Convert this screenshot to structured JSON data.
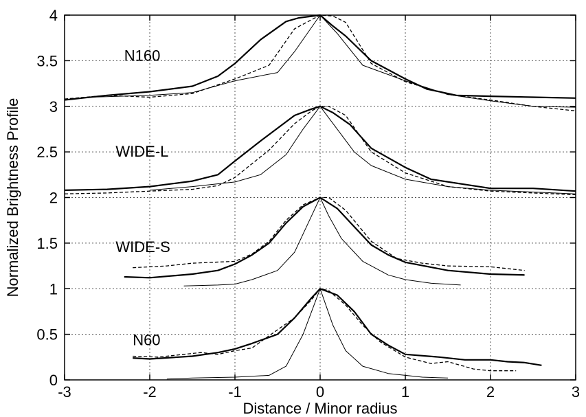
{
  "chart_data": {
    "type": "line",
    "title": "",
    "xlabel": "Distance / Minor radius",
    "ylabel": "Normalized Brightness Profile",
    "xlim": [
      -3,
      3
    ],
    "ylim": [
      0,
      4
    ],
    "x_ticks": [
      "-3",
      "-2",
      "-1",
      "0",
      "1",
      "2",
      "3"
    ],
    "y_ticks": [
      "0",
      "0.5",
      "1",
      "1.5",
      "2",
      "2.5",
      "3",
      "3.5",
      "4"
    ],
    "grid": true,
    "legend": "none",
    "group_labels": [
      {
        "text": "N160",
        "x": -2.3,
        "y": 3.5
      },
      {
        "text": "WIDE-L",
        "x": -2.4,
        "y": 2.45
      },
      {
        "text": "WIDE-S",
        "x": -2.4,
        "y": 1.4
      },
      {
        "text": "N60",
        "x": -2.2,
        "y": 0.38
      }
    ],
    "series": [
      {
        "group": "N160",
        "style": "thick",
        "points": [
          [
            -3,
            3.07
          ],
          [
            -2.5,
            3.12
          ],
          [
            -2,
            3.16
          ],
          [
            -1.5,
            3.22
          ],
          [
            -1.2,
            3.33
          ],
          [
            -1,
            3.47
          ],
          [
            -0.7,
            3.73
          ],
          [
            -0.4,
            3.93
          ],
          [
            -0.25,
            3.97
          ],
          [
            0,
            4.0
          ],
          [
            0.15,
            3.88
          ],
          [
            0.3,
            3.77
          ],
          [
            0.6,
            3.5
          ],
          [
            1,
            3.3
          ],
          [
            1.25,
            3.19
          ],
          [
            1.6,
            3.12
          ],
          [
            2,
            3.11
          ],
          [
            2.5,
            3.1
          ],
          [
            3,
            3.09
          ]
        ]
      },
      {
        "group": "N160",
        "style": "dashed",
        "points": [
          [
            -3,
            3.08
          ],
          [
            -2.5,
            3.12
          ],
          [
            -2,
            3.1
          ],
          [
            -1.5,
            3.14
          ],
          [
            -1,
            3.3
          ],
          [
            -0.6,
            3.45
          ],
          [
            -0.3,
            3.85
          ],
          [
            -0.1,
            3.95
          ],
          [
            0,
            4.0
          ],
          [
            0.15,
            3.99
          ],
          [
            0.3,
            3.92
          ],
          [
            0.6,
            3.47
          ],
          [
            1,
            3.27
          ],
          [
            1.5,
            3.13
          ],
          [
            2,
            3.07
          ],
          [
            2.5,
            3.0
          ],
          [
            3,
            2.95
          ]
        ]
      },
      {
        "group": "N160",
        "style": "thin",
        "points": [
          [
            -2.7,
            3.1
          ],
          [
            -2,
            3.12
          ],
          [
            -1.5,
            3.15
          ],
          [
            -1,
            3.28
          ],
          [
            -0.5,
            3.37
          ],
          [
            -0.3,
            3.6
          ],
          [
            0,
            4.0
          ],
          [
            0.2,
            3.8
          ],
          [
            0.5,
            3.45
          ],
          [
            1,
            3.28
          ],
          [
            1.5,
            3.13
          ],
          [
            2,
            3.06
          ],
          [
            2.5,
            3.0
          ],
          [
            3,
            2.99
          ]
        ]
      },
      {
        "group": "WIDE-L",
        "style": "thick",
        "points": [
          [
            -3,
            2.08
          ],
          [
            -2.5,
            2.09
          ],
          [
            -2,
            2.12
          ],
          [
            -1.5,
            2.18
          ],
          [
            -1.2,
            2.25
          ],
          [
            -1,
            2.4
          ],
          [
            -0.7,
            2.62
          ],
          [
            -0.3,
            2.9
          ],
          [
            -0.1,
            2.97
          ],
          [
            0,
            3.0
          ],
          [
            0.15,
            2.93
          ],
          [
            0.35,
            2.8
          ],
          [
            0.6,
            2.54
          ],
          [
            1,
            2.33
          ],
          [
            1.3,
            2.2
          ],
          [
            2,
            2.1
          ],
          [
            2.5,
            2.1
          ],
          [
            3,
            2.07
          ]
        ]
      },
      {
        "group": "WIDE-L",
        "style": "dashed",
        "points": [
          [
            -3,
            2.04
          ],
          [
            -2.5,
            2.05
          ],
          [
            -2,
            2.07
          ],
          [
            -1.5,
            2.09
          ],
          [
            -1.2,
            2.13
          ],
          [
            -1,
            2.22
          ],
          [
            -0.6,
            2.52
          ],
          [
            -0.3,
            2.81
          ],
          [
            -0.1,
            2.95
          ],
          [
            0,
            3.0
          ],
          [
            0.1,
            3.0
          ],
          [
            0.3,
            2.9
          ],
          [
            0.6,
            2.5
          ],
          [
            1,
            2.27
          ],
          [
            1.5,
            2.12
          ],
          [
            2,
            2.07
          ],
          [
            2.5,
            2.05
          ],
          [
            3,
            2.03
          ]
        ]
      },
      {
        "group": "WIDE-L",
        "style": "thin",
        "points": [
          [
            -2,
            2.08
          ],
          [
            -1.5,
            2.12
          ],
          [
            -1,
            2.17
          ],
          [
            -0.7,
            2.25
          ],
          [
            -0.4,
            2.47
          ],
          [
            -0.2,
            2.75
          ],
          [
            0,
            3.0
          ],
          [
            0.2,
            2.75
          ],
          [
            0.4,
            2.5
          ],
          [
            0.6,
            2.35
          ],
          [
            1,
            2.2
          ],
          [
            1.5,
            2.12
          ],
          [
            2,
            2.08
          ],
          [
            2.5,
            2.06
          ],
          [
            3,
            2.04
          ]
        ]
      },
      {
        "group": "WIDE-S",
        "style": "thick",
        "points": [
          [
            -2.3,
            1.13
          ],
          [
            -2,
            1.12
          ],
          [
            -1.5,
            1.16
          ],
          [
            -1.2,
            1.2
          ],
          [
            -1,
            1.27
          ],
          [
            -0.8,
            1.37
          ],
          [
            -0.6,
            1.5
          ],
          [
            -0.4,
            1.72
          ],
          [
            -0.2,
            1.9
          ],
          [
            0,
            2.0
          ],
          [
            0.2,
            1.88
          ],
          [
            0.4,
            1.68
          ],
          [
            0.6,
            1.48
          ],
          [
            0.8,
            1.37
          ],
          [
            1,
            1.29
          ],
          [
            1.5,
            1.2
          ],
          [
            2,
            1.16
          ],
          [
            2.4,
            1.15
          ]
        ]
      },
      {
        "group": "WIDE-S",
        "style": "dashed",
        "points": [
          [
            -2.2,
            1.23
          ],
          [
            -1.8,
            1.25
          ],
          [
            -1.5,
            1.28
          ],
          [
            -1,
            1.3
          ],
          [
            -0.8,
            1.38
          ],
          [
            -0.6,
            1.52
          ],
          [
            -0.4,
            1.75
          ],
          [
            -0.2,
            1.92
          ],
          [
            0,
            2.0
          ],
          [
            0.1,
            2.0
          ],
          [
            0.3,
            1.86
          ],
          [
            0.6,
            1.52
          ],
          [
            0.9,
            1.33
          ],
          [
            1.2,
            1.28
          ],
          [
            1.5,
            1.25
          ],
          [
            2,
            1.24
          ],
          [
            2.2,
            1.22
          ],
          [
            2.4,
            1.2
          ]
        ]
      },
      {
        "group": "WIDE-S",
        "style": "thin",
        "points": [
          [
            -1.6,
            1.03
          ],
          [
            -1.2,
            1.04
          ],
          [
            -1,
            1.05
          ],
          [
            -0.8,
            1.1
          ],
          [
            -0.5,
            1.2
          ],
          [
            -0.3,
            1.4
          ],
          [
            -0.15,
            1.7
          ],
          [
            0,
            2.0
          ],
          [
            0.1,
            1.8
          ],
          [
            0.25,
            1.55
          ],
          [
            0.5,
            1.3
          ],
          [
            0.8,
            1.15
          ],
          [
            1,
            1.1
          ],
          [
            1.3,
            1.06
          ],
          [
            1.65,
            1.04
          ]
        ]
      },
      {
        "group": "N60",
        "style": "thick",
        "points": [
          [
            -2.2,
            0.24
          ],
          [
            -2,
            0.23
          ],
          [
            -1.5,
            0.26
          ],
          [
            -1.2,
            0.3
          ],
          [
            -1,
            0.34
          ],
          [
            -0.8,
            0.4
          ],
          [
            -0.5,
            0.5
          ],
          [
            -0.3,
            0.68
          ],
          [
            -0.1,
            0.9
          ],
          [
            0,
            1.0
          ],
          [
            0.2,
            0.93
          ],
          [
            0.4,
            0.75
          ],
          [
            0.6,
            0.5
          ],
          [
            0.8,
            0.38
          ],
          [
            1,
            0.28
          ],
          [
            1.4,
            0.25
          ],
          [
            1.7,
            0.22
          ],
          [
            2,
            0.22
          ],
          [
            2.2,
            0.2
          ],
          [
            2.4,
            0.19
          ],
          [
            2.6,
            0.16
          ]
        ]
      },
      {
        "group": "N60",
        "style": "dashed",
        "points": [
          [
            -2.2,
            0.26
          ],
          [
            -1.9,
            0.25
          ],
          [
            -1.6,
            0.28
          ],
          [
            -1.4,
            0.3
          ],
          [
            -1.2,
            0.28
          ],
          [
            -1,
            0.32
          ],
          [
            -0.8,
            0.35
          ],
          [
            -0.5,
            0.55
          ],
          [
            -0.3,
            0.68
          ],
          [
            -0.1,
            0.88
          ],
          [
            0,
            1.0
          ],
          [
            0.1,
            0.98
          ],
          [
            0.3,
            0.82
          ],
          [
            0.5,
            0.6
          ],
          [
            0.7,
            0.42
          ],
          [
            1,
            0.25
          ],
          [
            1.3,
            0.18
          ],
          [
            1.5,
            0.2
          ],
          [
            1.8,
            0.12
          ],
          [
            2,
            0.1
          ],
          [
            2.3,
            0.1
          ]
        ]
      },
      {
        "group": "N60",
        "style": "thin",
        "points": [
          [
            -1.8,
            0.01
          ],
          [
            -1.5,
            0.02
          ],
          [
            -1,
            0.03
          ],
          [
            -0.6,
            0.05
          ],
          [
            -0.4,
            0.15
          ],
          [
            -0.2,
            0.5
          ],
          [
            0,
            1.0
          ],
          [
            0.15,
            0.6
          ],
          [
            0.3,
            0.32
          ],
          [
            0.5,
            0.15
          ],
          [
            0.8,
            0.07
          ],
          [
            1.2,
            0.03
          ],
          [
            1.5,
            0.02
          ]
        ]
      }
    ]
  }
}
